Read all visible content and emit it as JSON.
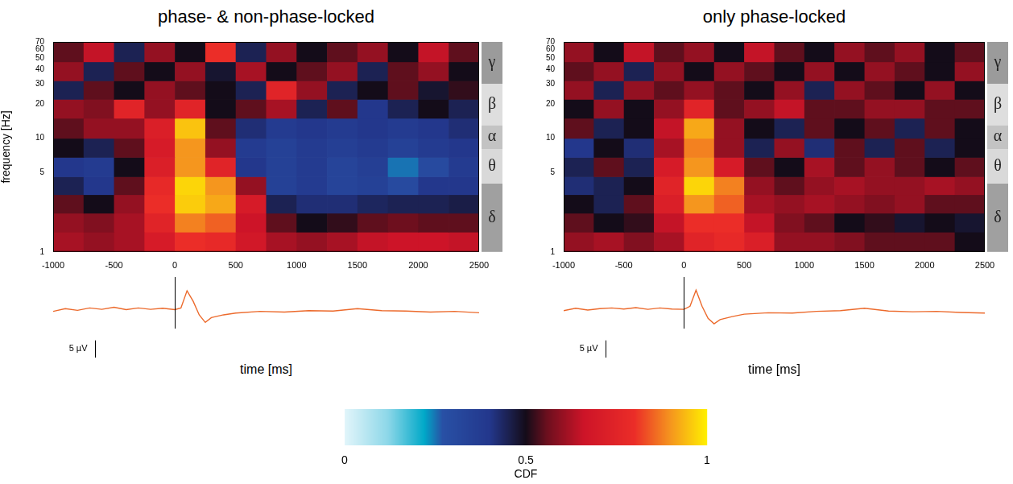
{
  "chart_data": [
    {
      "type": "heatmap",
      "title": "phase- & non-phase-locked",
      "x_label": "time [ms]",
      "y_label": "frequency [Hz]",
      "log": "y",
      "grid": false,
      "xlim": [
        -1000,
        2500
      ],
      "xticks": [
        -1000,
        -500,
        0,
        500,
        1000,
        1500,
        2000,
        2500
      ],
      "ylim": [
        1,
        70
      ],
      "yticks": [
        1,
        5,
        10,
        20,
        30,
        40,
        50,
        60,
        70
      ],
      "time_edges": [
        -1000,
        -750,
        -500,
        -250,
        0,
        250,
        500,
        750,
        1000,
        1250,
        1500,
        1750,
        2000,
        2250,
        2500
      ],
      "freq_edges": [
        1,
        1.5,
        2.2,
        3.2,
        4.6,
        6.8,
        10,
        15,
        22,
        32,
        47,
        70
      ],
      "cdf": [
        [
          0.62,
          0.6,
          0.62,
          0.7,
          0.8,
          0.78,
          0.68,
          0.62,
          0.6,
          0.62,
          0.65,
          0.66,
          0.66,
          0.65
        ],
        [
          0.6,
          0.58,
          0.62,
          0.75,
          0.88,
          0.85,
          0.66,
          0.55,
          0.5,
          0.52,
          0.55,
          0.56,
          0.55,
          0.55
        ],
        [
          0.55,
          0.5,
          0.6,
          0.8,
          0.96,
          0.92,
          0.7,
          0.45,
          0.42,
          0.42,
          0.44,
          0.45,
          0.45,
          0.46
        ],
        [
          0.45,
          0.4,
          0.55,
          0.78,
          0.97,
          0.9,
          0.6,
          0.35,
          0.38,
          0.33,
          0.35,
          0.3,
          0.4,
          0.4
        ],
        [
          0.4,
          0.38,
          0.5,
          0.72,
          0.9,
          0.75,
          0.4,
          0.35,
          0.38,
          0.33,
          0.36,
          0.25,
          0.3,
          0.38
        ],
        [
          0.5,
          0.45,
          0.55,
          0.7,
          0.9,
          0.6,
          0.38,
          0.35,
          0.38,
          0.36,
          0.38,
          0.35,
          0.38,
          0.4
        ],
        [
          0.55,
          0.6,
          0.6,
          0.72,
          0.95,
          0.55,
          0.42,
          0.38,
          0.4,
          0.38,
          0.4,
          0.38,
          0.4,
          0.42
        ],
        [
          0.6,
          0.58,
          0.75,
          0.6,
          0.75,
          0.5,
          0.55,
          0.62,
          0.45,
          0.55,
          0.4,
          0.45,
          0.5,
          0.45
        ],
        [
          0.45,
          0.55,
          0.5,
          0.6,
          0.55,
          0.5,
          0.45,
          0.75,
          0.6,
          0.45,
          0.5,
          0.55,
          0.48,
          0.52
        ],
        [
          0.6,
          0.45,
          0.55,
          0.5,
          0.6,
          0.48,
          0.62,
          0.5,
          0.55,
          0.6,
          0.45,
          0.55,
          0.6,
          0.5
        ],
        [
          0.55,
          0.65,
          0.45,
          0.6,
          0.5,
          0.8,
          0.45,
          0.6,
          0.5,
          0.55,
          0.6,
          0.5,
          0.65,
          0.55
        ]
      ],
      "bands": [
        {
          "label": "δ",
          "from": 1,
          "to": 4
        },
        {
          "label": "θ",
          "from": 4,
          "to": 8
        },
        {
          "label": "α",
          "from": 8,
          "to": 13
        },
        {
          "label": "β",
          "from": 13,
          "to": 30
        },
        {
          "label": "γ",
          "from": 30,
          "to": 70
        }
      ],
      "colorbar": {
        "range": [
          0,
          1
        ],
        "ticks": [
          0,
          0.5,
          1
        ],
        "label": "CDF"
      },
      "erp": {
        "color": "#ec6a2c",
        "event_time": 0,
        "scale_bar": {
          "value": 5,
          "label": "5 µV"
        },
        "x": [
          -1000,
          -900,
          -800,
          -700,
          -600,
          -500,
          -400,
          -300,
          -200,
          -100,
          0,
          50,
          100,
          150,
          200,
          250,
          300,
          400,
          500,
          700,
          900,
          1100,
          1300,
          1500,
          1700,
          1900,
          2100,
          2300,
          2500
        ],
        "values": [
          0,
          0.8,
          0.3,
          1,
          0.6,
          1.2,
          0.5,
          1,
          0.6,
          0.9,
          0.5,
          1,
          6,
          3,
          -1,
          -3.2,
          -1.8,
          -1,
          -0.5,
          0,
          -0.2,
          0.2,
          0.1,
          0.8,
          0.2,
          0.1,
          -0.2,
          0,
          -0.4
        ]
      }
    },
    {
      "type": "heatmap",
      "title": "only phase-locked",
      "x_label": "time [ms]",
      "log": "y",
      "grid": false,
      "xlim": [
        -1000,
        2500
      ],
      "xticks": [
        -1000,
        -500,
        0,
        500,
        1000,
        1500,
        2000,
        2500
      ],
      "ylim": [
        1,
        70
      ],
      "yticks": [
        1,
        5,
        10,
        20,
        30,
        40,
        50,
        60,
        70
      ],
      "time_edges": [
        -1000,
        -750,
        -500,
        -250,
        0,
        250,
        500,
        750,
        1000,
        1250,
        1500,
        1750,
        2000,
        2250,
        2500
      ],
      "freq_edges": [
        1,
        1.5,
        2.2,
        3.2,
        4.6,
        6.8,
        10,
        15,
        22,
        32,
        47,
        70
      ],
      "cdf": [
        [
          0.6,
          0.62,
          0.58,
          0.62,
          0.75,
          0.78,
          0.72,
          0.6,
          0.6,
          0.58,
          0.55,
          0.55,
          0.55,
          0.5
        ],
        [
          0.55,
          0.5,
          0.52,
          0.65,
          0.8,
          0.8,
          0.65,
          0.58,
          0.55,
          0.5,
          0.52,
          0.48,
          0.5,
          0.48
        ],
        [
          0.5,
          0.45,
          0.55,
          0.72,
          0.9,
          0.85,
          0.62,
          0.6,
          0.62,
          0.6,
          0.58,
          0.6,
          0.55,
          0.55
        ],
        [
          0.42,
          0.45,
          0.5,
          0.75,
          0.97,
          0.88,
          0.6,
          0.55,
          0.6,
          0.62,
          0.6,
          0.6,
          0.62,
          0.6
        ],
        [
          0.45,
          0.55,
          0.45,
          0.7,
          0.9,
          0.7,
          0.55,
          0.5,
          0.62,
          0.55,
          0.6,
          0.55,
          0.5,
          0.55
        ],
        [
          0.4,
          0.5,
          0.42,
          0.62,
          0.88,
          0.6,
          0.45,
          0.6,
          0.42,
          0.55,
          0.45,
          0.55,
          0.45,
          0.5
        ],
        [
          0.55,
          0.45,
          0.5,
          0.65,
          0.92,
          0.6,
          0.5,
          0.45,
          0.55,
          0.5,
          0.55,
          0.45,
          0.55,
          0.5
        ],
        [
          0.5,
          0.6,
          0.5,
          0.6,
          0.75,
          0.55,
          0.6,
          0.65,
          0.55,
          0.55,
          0.6,
          0.6,
          0.55,
          0.55
        ],
        [
          0.6,
          0.45,
          0.6,
          0.55,
          0.6,
          0.55,
          0.5,
          0.6,
          0.45,
          0.6,
          0.55,
          0.5,
          0.6,
          0.5
        ],
        [
          0.55,
          0.6,
          0.45,
          0.6,
          0.5,
          0.6,
          0.55,
          0.5,
          0.6,
          0.5,
          0.6,
          0.55,
          0.5,
          0.6
        ],
        [
          0.6,
          0.5,
          0.65,
          0.55,
          0.6,
          0.5,
          0.65,
          0.55,
          0.5,
          0.6,
          0.55,
          0.6,
          0.5,
          0.55
        ]
      ],
      "bands": [
        {
          "label": "δ",
          "from": 1,
          "to": 4
        },
        {
          "label": "θ",
          "from": 4,
          "to": 8
        },
        {
          "label": "α",
          "from": 8,
          "to": 13
        },
        {
          "label": "β",
          "from": 13,
          "to": 30
        },
        {
          "label": "γ",
          "from": 30,
          "to": 70
        }
      ],
      "colorbar": {
        "range": [
          0,
          1
        ],
        "ticks": [
          0,
          0.5,
          1
        ],
        "label": "CDF"
      },
      "erp": {
        "color": "#ec6a2c",
        "event_time": 0,
        "scale_bar": {
          "value": 5,
          "label": "5 µV"
        },
        "x": [
          -1000,
          -900,
          -800,
          -700,
          -600,
          -500,
          -400,
          -300,
          -200,
          -100,
          0,
          50,
          100,
          150,
          200,
          250,
          300,
          400,
          500,
          700,
          900,
          1100,
          1300,
          1500,
          1700,
          1900,
          2100,
          2300,
          2500
        ],
        "values": [
          0.2,
          0.9,
          0.4,
          0.8,
          1,
          0.7,
          1.1,
          0.6,
          1,
          0.7,
          0.6,
          1.5,
          6.2,
          1.5,
          -2,
          -3.6,
          -2.4,
          -1.5,
          -0.8,
          -0.4,
          -0.5,
          0,
          0.2,
          0.9,
          0.1,
          -0.1,
          0,
          -0.3,
          -0.5
        ]
      }
    }
  ]
}
